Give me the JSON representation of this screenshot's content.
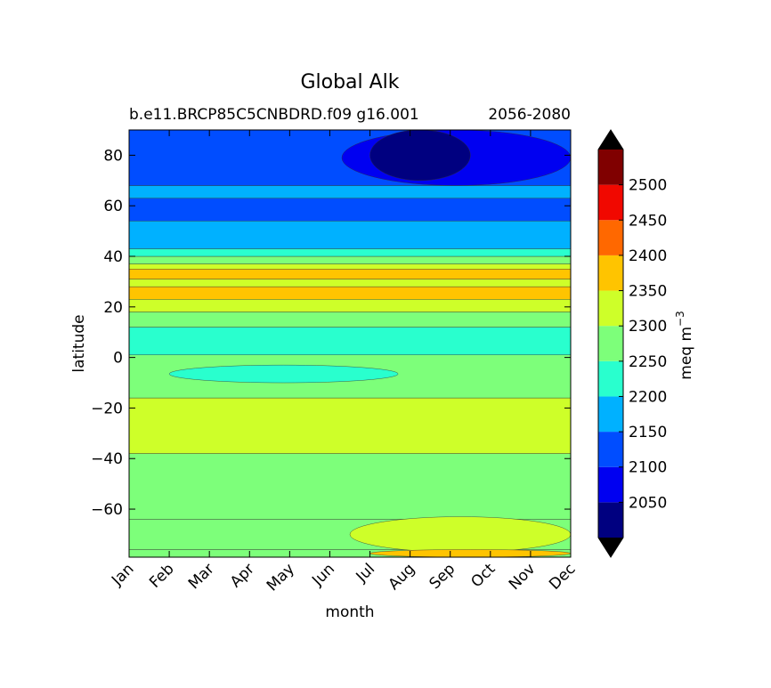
{
  "chart_data": {
    "type": "heatmap",
    "title": "Global Alk",
    "subtitle_left": "b.e11.BRCP85C5CNBDRD.f09 g16.001",
    "subtitle_right": "2056-2080",
    "xlabel": "month",
    "ylabel": "latitude",
    "x_categories": [
      "Jan",
      "Feb",
      "Mar",
      "Apr",
      "May",
      "Jun",
      "Jul",
      "Aug",
      "Sep",
      "Oct",
      "Nov",
      "Dec"
    ],
    "ylim": [
      -79,
      90
    ],
    "y_ticks": [
      -60,
      -40,
      -20,
      0,
      20,
      40,
      60,
      80
    ],
    "y_tick_labels": [
      "−60",
      "−40",
      "−20",
      "0",
      "20",
      "40",
      "60",
      "80"
    ],
    "colorbar": {
      "label": "meq m",
      "label_superscript": "−3",
      "levels": [
        2000,
        2050,
        2100,
        2150,
        2200,
        2250,
        2300,
        2350,
        2400,
        2450,
        2500,
        2550
      ],
      "tick_values": [
        2050,
        2100,
        2150,
        2200,
        2250,
        2300,
        2350,
        2400,
        2450,
        2500
      ],
      "tick_labels": [
        "2050",
        "2100",
        "2150",
        "2200",
        "2250",
        "2300",
        "2350",
        "2400",
        "2450",
        "2500"
      ],
      "colors": [
        "#000080",
        "#0000f1",
        "#004dff",
        "#00b1ff",
        "#29ffce",
        "#7dff7a",
        "#ceff29",
        "#ffc400",
        "#ff6800",
        "#f10800",
        "#800000"
      ],
      "under_color": "#000000",
      "over_color": "#000000"
    },
    "bands": [
      {
        "lat_min": -79,
        "lat_max": -76,
        "value": 2275
      },
      {
        "lat_min": -76,
        "lat_max": -64,
        "value": 2275
      },
      {
        "lat_min": -64,
        "lat_max": -38,
        "value": 2275
      },
      {
        "lat_min": -38,
        "lat_max": -16,
        "value": 2325
      },
      {
        "lat_min": -16,
        "lat_max": 1,
        "value": 2275
      },
      {
        "lat_min": 1,
        "lat_max": 12,
        "value": 2225
      },
      {
        "lat_min": 12,
        "lat_max": 18,
        "value": 2275
      },
      {
        "lat_min": 18,
        "lat_max": 23,
        "value": 2325
      },
      {
        "lat_min": 23,
        "lat_max": 28,
        "value": 2375
      },
      {
        "lat_min": 28,
        "lat_max": 31,
        "value": 2325
      },
      {
        "lat_min": 31,
        "lat_max": 35,
        "value": 2375
      },
      {
        "lat_min": 35,
        "lat_max": 37,
        "value": 2325
      },
      {
        "lat_min": 37,
        "lat_max": 40,
        "value": 2275
      },
      {
        "lat_min": 40,
        "lat_max": 43,
        "value": 2225
      },
      {
        "lat_min": 43,
        "lat_max": 54,
        "value": 2175
      },
      {
        "lat_min": 54,
        "lat_max": 63,
        "value": 2125
      },
      {
        "lat_min": 63,
        "lat_max": 68,
        "value": 2175
      },
      {
        "lat_min": 68,
        "lat_max": 90,
        "value": 2125
      }
    ],
    "regions": [
      {
        "month_start": 5.5,
        "month_end": 11,
        "lat_min": -77,
        "lat_max": -63,
        "value": 2325
      },
      {
        "month_start": 6.0,
        "month_end": 11,
        "lat_min": -79,
        "lat_max": -76,
        "value": 2375
      },
      {
        "month_start": 1.0,
        "month_end": 6.7,
        "lat_min": -10,
        "lat_max": -3,
        "value": 2225
      },
      {
        "month_start": 5.3,
        "month_end": 11,
        "lat_min": 68,
        "lat_max": 90,
        "value": 2075
      },
      {
        "month_start": 6.0,
        "month_end": 8.5,
        "lat_min": 70,
        "lat_max": 90,
        "value": 2025
      }
    ]
  }
}
